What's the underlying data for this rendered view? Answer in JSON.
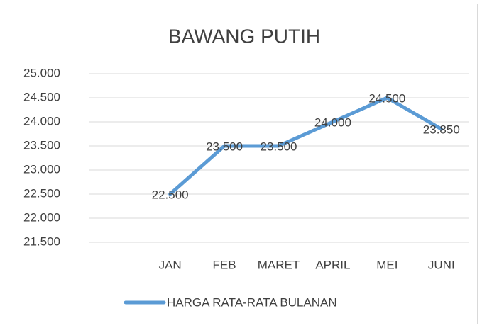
{
  "chart_data": {
    "type": "line",
    "title": "BAWANG PUTIH",
    "categories": [
      null,
      "JAN",
      "FEB",
      "MARET",
      "APRIL",
      "MEI",
      "JUNI"
    ],
    "series": [
      {
        "name": "HARGA RATA-RATA BULANAN",
        "color": "#5b9bd5",
        "values": [
          null,
          22500,
          23500,
          23500,
          24000,
          24500,
          23850
        ],
        "value_labels": [
          null,
          "22.500",
          "23.500",
          "23.500",
          "24.000",
          "24.500",
          "23.850"
        ]
      }
    ],
    "ylim": [
      21500,
      25000
    ],
    "yticks": [
      {
        "value": 21500,
        "label": "21.500"
      },
      {
        "value": 22000,
        "label": "22.000"
      },
      {
        "value": 22500,
        "label": "22.500"
      },
      {
        "value": 23000,
        "label": "23.000"
      },
      {
        "value": 23500,
        "label": "23.500"
      },
      {
        "value": 24000,
        "label": "24.000"
      },
      {
        "value": 24500,
        "label": "24.500"
      },
      {
        "value": 25000,
        "label": "25.000"
      }
    ],
    "grid": true,
    "legend": "bottom"
  }
}
